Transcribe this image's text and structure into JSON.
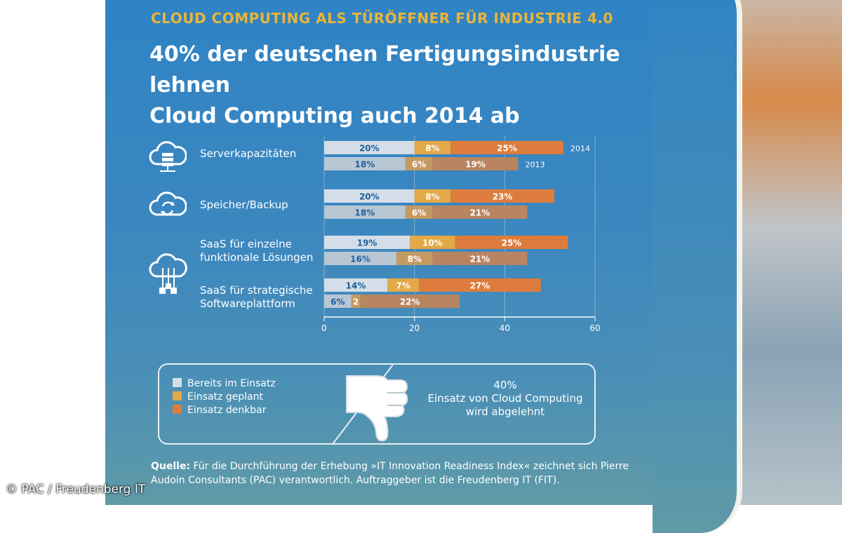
{
  "header": {
    "tagline": "CLOUD COMPUTING ALS TÜRÖFFNER FÜR INDUSTRIE 4.0",
    "headline_line1": "40% der deutschen Fertigungsindustrie lehnen",
    "headline_line2": "Cloud Computing auch 2014 ab"
  },
  "chart_data": {
    "type": "bar",
    "orientation": "horizontal-stacked",
    "title": "40% der deutschen Fertigungsindustrie lehnen Cloud Computing auch 2014 ab",
    "xlim": [
      0,
      60
    ],
    "xticks": [
      0,
      20,
      40,
      60
    ],
    "year_labels": [
      "2014",
      "2013"
    ],
    "categories": [
      "Serverkapazitäten",
      "Speicher/Backup",
      "SaaS für einzelne funktionale Lösungen",
      "SaaS für strategische Softwareplattform"
    ],
    "series": [
      {
        "name": "Bereits im Einsatz",
        "color": "#d5dee8",
        "values_2014": [
          20,
          20,
          19,
          14
        ],
        "values_2013": [
          18,
          18,
          16,
          6
        ],
        "labels_2014": [
          "20%",
          "20%",
          "19%",
          "14%"
        ],
        "labels_2013": [
          "18%",
          "18%",
          "16%",
          "6%"
        ]
      },
      {
        "name": "Einsatz geplant",
        "color": "#e3a847",
        "values_2014": [
          8,
          8,
          10,
          7
        ],
        "values_2013": [
          6,
          6,
          8,
          2
        ],
        "labels_2014": [
          "8%",
          "8%",
          "10%",
          "7%"
        ],
        "labels_2013": [
          "6%",
          "6%",
          "8%",
          "2"
        ]
      },
      {
        "name": "Einsatz denkbar",
        "color": "#dd7c3c",
        "values_2014": [
          25,
          23,
          25,
          27
        ],
        "values_2013": [
          19,
          21,
          21,
          22
        ],
        "labels_2014": [
          "25%",
          "23%",
          "25%",
          "27%"
        ],
        "labels_2013": [
          "19%",
          "21%",
          "21%",
          "22%"
        ]
      }
    ]
  },
  "rows": {
    "label_0": "Serverkapazitäten",
    "label_1": "Speicher/Backup",
    "label_2a": "SaaS für einzelne",
    "label_2b": "funktionale Lösungen",
    "label_3a": "SaaS für strategische",
    "label_3b": "Softwareplattform"
  },
  "legend": {
    "item_0": "Bereits im Einsatz",
    "item_1": "Einsatz geplant",
    "item_2": "Einsatz denkbar",
    "thumb_value": "40%",
    "thumb_line1": "Einsatz von Cloud Computing",
    "thumb_line2": "wird abgelehnt"
  },
  "footer": {
    "source_label": "Quelle:",
    "source_text": "Für die Durchführung der Erhebung »IT Innovation Readiness Index« zeichnet sich Pierre Audoin Consultants (PAC) verantwortlich. Auftraggeber ist die Freudenberg IT (FIT).",
    "copyright": "© PAC / Freudenberg IT"
  },
  "colors": {
    "bereits": "#d5dee8",
    "geplant": "#e3a847",
    "denkbar": "#dd7c3c",
    "bar_2013_light": "#b9c7d4",
    "bar_2013_mid": "#c59a62",
    "bar_2013_dark": "#b98460"
  }
}
